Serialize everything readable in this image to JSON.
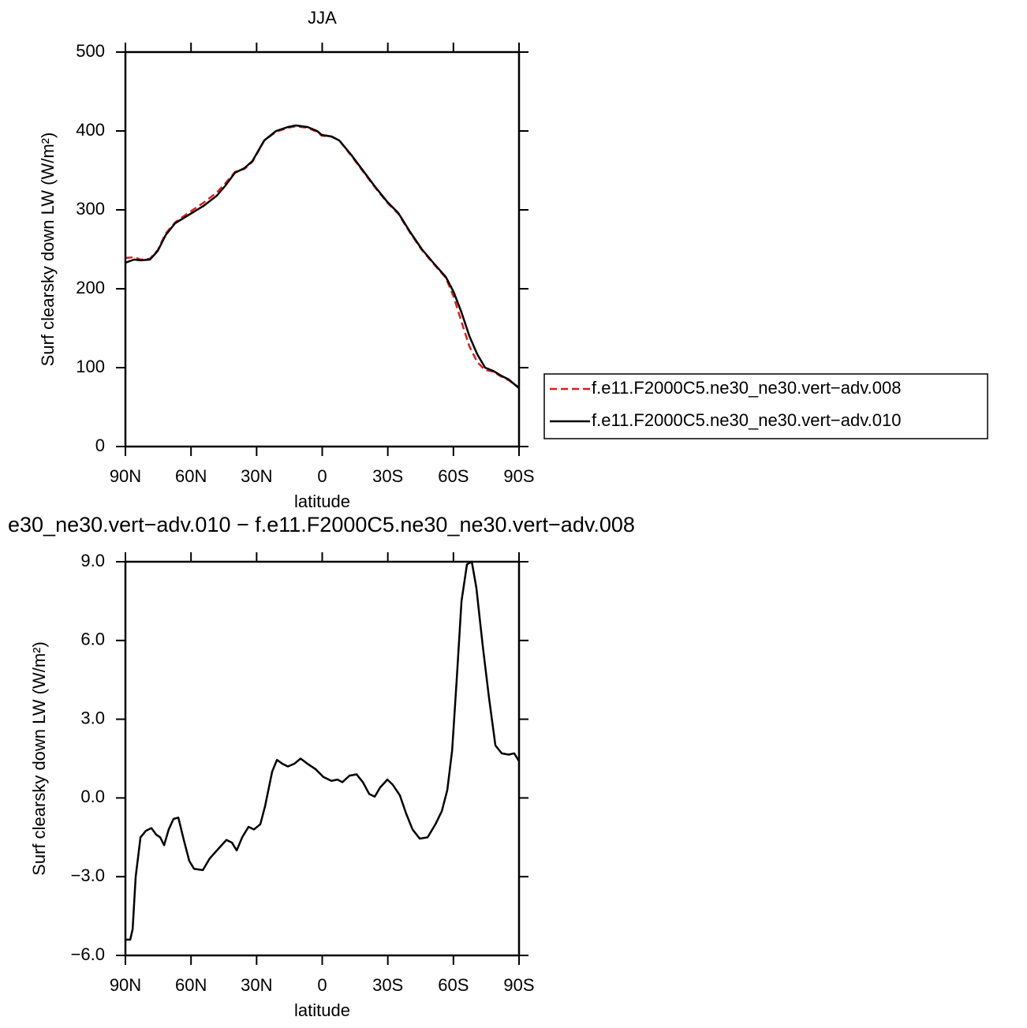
{
  "chart_data": [
    {
      "type": "line",
      "title": "JJA",
      "x_label": "latitude",
      "y_label": "Surf clearsky down LW (W/m²)",
      "xlim": [
        90,
        -90
      ],
      "ylim": [
        0,
        500
      ],
      "xticks": [
        {
          "value": 90,
          "label": "90N"
        },
        {
          "value": 60,
          "label": "60N"
        },
        {
          "value": 30,
          "label": "30N"
        },
        0,
        {
          "value": -30,
          "label": "30S"
        },
        {
          "value": -60,
          "label": "60S"
        },
        {
          "value": -90,
          "label": "90S"
        }
      ],
      "yticks": [
        0,
        100,
        200,
        300,
        400,
        500
      ],
      "legend": "right",
      "x": [
        90,
        86,
        83.1,
        78.8,
        75.2,
        71.6,
        67.3,
        60.8,
        54.3,
        48.2,
        44.5,
        39.9,
        35.5,
        31.9,
        26.5,
        21.1,
        15.7,
        12.1,
        6.7,
        2.4,
        0.2,
        -4.2,
        -7.8,
        -13.2,
        -18.6,
        -24,
        -29.8,
        -34.8,
        -40.2,
        -45.6,
        -51.1,
        -56.5,
        -60.1,
        -63.7,
        -67.3,
        -70.9,
        -74.5,
        -78.1,
        -81.7,
        -85.3,
        -90
      ],
      "series": [
        {
          "name": "f.e11.F2000C5.ne30_ne30.vert−adv.008",
          "color": "#e31a1c",
          "dashed": true,
          "values": [
            239,
            240,
            237,
            238,
            249,
            270,
            284,
            297,
            309,
            322,
            333,
            348,
            352,
            361,
            388,
            399,
            404,
            406,
            404,
            399,
            394,
            393,
            388,
            369,
            349,
            329,
            309,
            295,
            271,
            249,
            231,
            214,
            190,
            158,
            127,
            107,
            97,
            95,
            89,
            84,
            75
          ]
        },
        {
          "name": "f.e11.F2000C5.ne30_ne30.vert−adv.010",
          "color": "#000000",
          "dashed": false,
          "values": [
            233,
            237,
            236,
            237,
            248,
            268,
            283,
            294,
            305,
            318,
            330,
            347,
            353,
            362,
            388,
            400,
            405,
            407,
            405,
            400,
            395,
            393,
            388,
            370,
            350,
            330,
            310,
            296,
            272,
            250,
            232,
            215,
            196,
            170,
            140,
            117,
            100,
            96,
            90,
            85,
            74
          ]
        }
      ]
    },
    {
      "type": "line",
      "title": "e30_ne30.vert−adv.010 − f.e11.F2000C5.ne30_ne30.vert−adv.008",
      "x_label": "latitude",
      "y_label": "Surf clearsky down LW (W/m²)",
      "xlim": [
        90,
        -90
      ],
      "ylim": [
        -6,
        9
      ],
      "xticks": [
        {
          "value": 90,
          "label": "90N"
        },
        {
          "value": 60,
          "label": "60N"
        },
        {
          "value": 30,
          "label": "30N"
        },
        0,
        {
          "value": -30,
          "label": "30S"
        },
        {
          "value": -60,
          "label": "60S"
        },
        {
          "value": -90,
          "label": "90S"
        }
      ],
      "yticks": [
        {
          "value": -6,
          "label": "−6.0"
        },
        {
          "value": -3,
          "label": "−3.0"
        },
        {
          "value": 0,
          "label": "0.0"
        },
        {
          "value": 3,
          "label": "3.0"
        },
        {
          "value": 6,
          "label": "6.0"
        },
        {
          "value": 9,
          "label": "9.0"
        }
      ],
      "x": [
        90,
        87.8,
        86.7,
        85.3,
        83.1,
        80.6,
        78.1,
        75.9,
        74.1,
        72.3,
        70.2,
        68,
        65.8,
        63.3,
        60.8,
        58.6,
        54.6,
        51.4,
        47.1,
        43.8,
        41.3,
        39.1,
        36.6,
        33.7,
        31.2,
        28.3,
        26.1,
        22.9,
        20.7,
        18.2,
        15.7,
        12.8,
        9.9,
        6.7,
        3.1,
        -0.5,
        -4.2,
        -7,
        -9.2,
        -12.5,
        -15.7,
        -18.6,
        -21.5,
        -24,
        -26.5,
        -29.8,
        -32.3,
        -35.5,
        -38.4,
        -41.3,
        -44.6,
        -48.2,
        -51.8,
        -54.7,
        -57.2,
        -59.4,
        -61.5,
        -63.7,
        -66.2,
        -68.4,
        -70.5,
        -73.4,
        -76.3,
        -79.2,
        -82.1,
        -85.3,
        -87.8,
        -90
      ],
      "series": [
        {
          "color": "#000000",
          "dashed": false,
          "values": [
            -5.4,
            -5.4,
            -5,
            -3,
            -1.5,
            -1.25,
            -1.15,
            -1.4,
            -1.5,
            -1.8,
            -1.2,
            -0.8,
            -0.75,
            -1.6,
            -2.4,
            -2.7,
            -2.75,
            -2.3,
            -1.9,
            -1.6,
            -1.7,
            -2,
            -1.5,
            -1.1,
            -1.2,
            -1,
            -0.3,
            1,
            1.45,
            1.3,
            1.2,
            1.3,
            1.5,
            1.3,
            1.1,
            0.8,
            0.65,
            0.7,
            0.6,
            0.85,
            0.9,
            0.6,
            0.15,
            0.05,
            0.4,
            0.7,
            0.5,
            0.1,
            -0.6,
            -1.2,
            -1.55,
            -1.5,
            -1,
            -0.5,
            0.3,
            1.8,
            4.5,
            7.5,
            8.9,
            9,
            8,
            5.8,
            3.8,
            2,
            1.7,
            1.65,
            1.7,
            1.4
          ]
        }
      ]
    }
  ]
}
